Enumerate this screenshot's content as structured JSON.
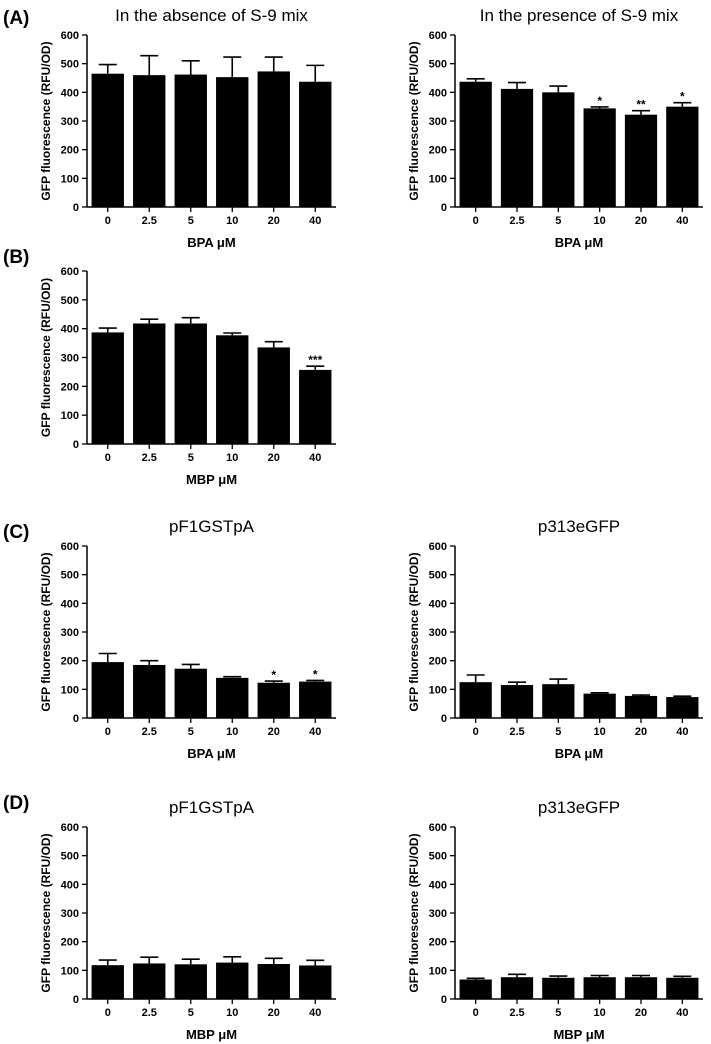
{
  "panel_labels": [
    "(A)",
    "(B)",
    "(C)",
    "(D)"
  ],
  "chart_data": [
    {
      "type": "bar",
      "panel": "(A)",
      "title": "In the absence of S-9 mix",
      "categories": [
        "0",
        "2.5",
        "5",
        "10",
        "20",
        "40"
      ],
      "values": [
        465,
        460,
        462,
        453,
        473,
        437
      ],
      "errors": [
        32,
        68,
        48,
        70,
        50,
        57
      ],
      "significance": [
        "",
        "",
        "",
        "",
        "",
        ""
      ],
      "xlabel": "BPA μM",
      "ylabel": "GFP fluorescence (RFU/OD)",
      "ylim": [
        0,
        600
      ],
      "yticks": [
        0,
        100,
        200,
        300,
        400,
        500,
        600
      ]
    },
    {
      "type": "bar",
      "panel": "",
      "title": "In the presence of S-9 mix",
      "categories": [
        "0",
        "2.5",
        "5",
        "10",
        "20",
        "40"
      ],
      "values": [
        437,
        412,
        400,
        344,
        322,
        350
      ],
      "errors": [
        10,
        22,
        22,
        5,
        14,
        14
      ],
      "significance": [
        "",
        "",
        "",
        "*",
        "**",
        "*"
      ],
      "xlabel": "BPA μM",
      "ylabel": "GFP fluorescence (RFU/OD)",
      "ylim": [
        0,
        600
      ],
      "yticks": [
        0,
        100,
        200,
        300,
        400,
        500,
        600
      ]
    },
    {
      "type": "bar",
      "panel": "(B)",
      "title": "",
      "categories": [
        "0",
        "2.5",
        "5",
        "10",
        "20",
        "40"
      ],
      "values": [
        387,
        418,
        418,
        377,
        335,
        257
      ],
      "errors": [
        15,
        15,
        20,
        8,
        20,
        13
      ],
      "significance": [
        "",
        "",
        "",
        "",
        "",
        "***"
      ],
      "xlabel": "MBP μM",
      "ylabel": "GFP fluorescence (RFU/OD)",
      "ylim": [
        0,
        600
      ],
      "yticks": [
        0,
        100,
        200,
        300,
        400,
        500,
        600
      ]
    },
    {
      "type": "bar",
      "panel": "(C)",
      "title": "pF1GSTpA",
      "categories": [
        "0",
        "2.5",
        "5",
        "10",
        "20",
        "40"
      ],
      "values": [
        195,
        185,
        172,
        140,
        123,
        127
      ],
      "errors": [
        30,
        15,
        15,
        4,
        6,
        4
      ],
      "significance": [
        "",
        "",
        "",
        "",
        "*",
        "*"
      ],
      "xlabel": "BPA μM",
      "ylabel": "GFP fluorescence (RFU/OD)",
      "ylim": [
        0,
        600
      ],
      "yticks": [
        0,
        100,
        200,
        300,
        400,
        500,
        600
      ]
    },
    {
      "type": "bar",
      "panel": "",
      "title": "p313eGFP",
      "categories": [
        "0",
        "2.5",
        "5",
        "10",
        "20",
        "40"
      ],
      "values": [
        125,
        115,
        118,
        85,
        77,
        73
      ],
      "errors": [
        25,
        10,
        18,
        3,
        3,
        3
      ],
      "significance": [
        "",
        "",
        "",
        "",
        "",
        ""
      ],
      "xlabel": "BPA μM",
      "ylabel": "GFP fluorescence (RFU/OD)",
      "ylim": [
        0,
        600
      ],
      "yticks": [
        0,
        100,
        200,
        300,
        400,
        500,
        600
      ]
    },
    {
      "type": "bar",
      "panel": "(D)",
      "title": "pF1GSTpA",
      "categories": [
        "0",
        "2.5",
        "5",
        "10",
        "20",
        "40"
      ],
      "values": [
        118,
        124,
        121,
        127,
        122,
        117
      ],
      "errors": [
        18,
        22,
        18,
        20,
        20,
        18
      ],
      "significance": [
        "",
        "",
        "",
        "",
        "",
        ""
      ],
      "xlabel": "MBP μM",
      "ylabel": "GFP fluorescence (RFU/OD)",
      "ylim": [
        0,
        600
      ],
      "yticks": [
        0,
        100,
        200,
        300,
        400,
        500,
        600
      ]
    },
    {
      "type": "bar",
      "panel": "",
      "title": "p313eGFP",
      "categories": [
        "0",
        "2.5",
        "5",
        "10",
        "20",
        "40"
      ],
      "values": [
        68,
        76,
        74,
        76,
        76,
        74
      ],
      "errors": [
        4,
        10,
        6,
        6,
        6,
        5
      ],
      "significance": [
        "",
        "",
        "",
        "",
        "",
        ""
      ],
      "xlabel": "MBP μM",
      "ylabel": "GFP fluorescence (RFU/OD)",
      "ylim": [
        0,
        600
      ],
      "yticks": [
        0,
        100,
        200,
        300,
        400,
        500,
        600
      ]
    }
  ]
}
